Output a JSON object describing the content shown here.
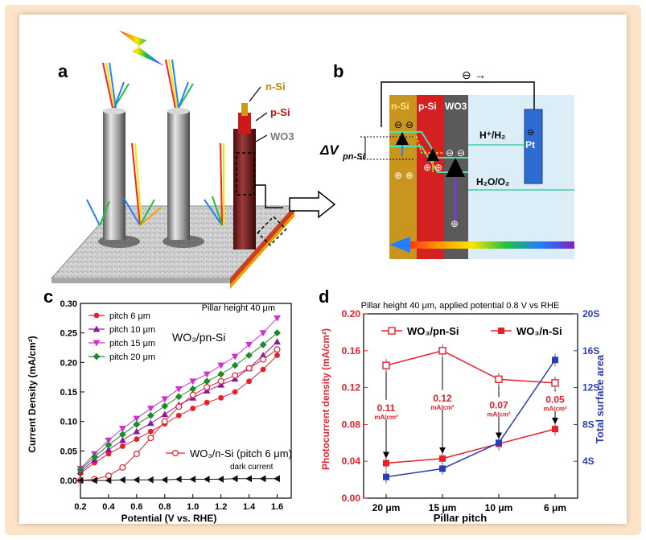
{
  "panels": {
    "a": "a",
    "b": "b",
    "c": "c",
    "d": "d"
  },
  "panel_a": {
    "labels": [
      "n-Si",
      "p-Si",
      "WO3"
    ],
    "label_colors": [
      "#c08a00",
      "#cc1111",
      "#7a7a7a"
    ]
  },
  "panel_b": {
    "layers": [
      "n-Si",
      "p-Si",
      "WO3"
    ],
    "layer_colors": [
      "#c8961e",
      "#d42020",
      "#5a5a5a"
    ],
    "electron": "⊖",
    "electron_arrow": "→",
    "delta_v": "ΔV",
    "delta_v_sub": "pn-Si",
    "redox1": "H⁺/H₂",
    "redox2": "H₂O/O₂",
    "metal": "Pt",
    "electron_charge": "⊖",
    "hole_charge": "⊕"
  },
  "chart_data": [
    {
      "type": "scatter",
      "panel": "c",
      "xlabel": "Potential (V vs. RHE)",
      "ylabel": "Current Density (mA/cm²)",
      "xlim": [
        0.2,
        1.7
      ],
      "ylim": [
        -0.03,
        0.3
      ],
      "xticks": [
        "0.2",
        "0.4",
        "0.6",
        "0.8",
        "1.0",
        "1.2",
        "1.4",
        "1.6"
      ],
      "yticks": [
        "0.00",
        "0.05",
        "0.10",
        "0.15",
        "0.20",
        "0.25",
        "0.30"
      ],
      "annotations": [
        "Pillar height 40 μm",
        "WO₃/pn-Si",
        "dark current"
      ],
      "legend_position": "top-left",
      "series": [
        {
          "name": "pitch 6 μm",
          "color": "#e8202a",
          "marker": "circle",
          "x": [
            0.2,
            0.3,
            0.4,
            0.5,
            0.6,
            0.7,
            0.8,
            0.9,
            1.0,
            1.1,
            1.2,
            1.3,
            1.4,
            1.5,
            1.6
          ],
          "y": [
            0.012,
            0.03,
            0.045,
            0.058,
            0.07,
            0.083,
            0.096,
            0.11,
            0.122,
            0.132,
            0.14,
            0.15,
            0.168,
            0.188,
            0.212
          ]
        },
        {
          "name": "pitch 10 μm",
          "color": "#8b1a9b",
          "marker": "triangle-up",
          "x": [
            0.2,
            0.3,
            0.4,
            0.5,
            0.6,
            0.7,
            0.8,
            0.9,
            1.0,
            1.1,
            1.2,
            1.3,
            1.4,
            1.5,
            1.6
          ],
          "y": [
            0.015,
            0.035,
            0.052,
            0.068,
            0.083,
            0.097,
            0.112,
            0.128,
            0.14,
            0.152,
            0.162,
            0.172,
            0.19,
            0.212,
            0.235
          ]
        },
        {
          "name": "pitch 15 μm",
          "color": "#cc33cc",
          "marker": "triangle-down",
          "x": [
            0.2,
            0.3,
            0.4,
            0.5,
            0.6,
            0.7,
            0.8,
            0.9,
            1.0,
            1.1,
            1.2,
            1.3,
            1.4,
            1.5,
            1.6
          ],
          "y": [
            0.02,
            0.045,
            0.068,
            0.088,
            0.105,
            0.122,
            0.138,
            0.155,
            0.168,
            0.18,
            0.195,
            0.21,
            0.23,
            0.25,
            0.275
          ]
        },
        {
          "name": "pitch 20 μm",
          "color": "#1f8a2a",
          "marker": "diamond",
          "x": [
            0.2,
            0.3,
            0.4,
            0.5,
            0.6,
            0.7,
            0.8,
            0.9,
            1.0,
            1.1,
            1.2,
            1.3,
            1.4,
            1.5,
            1.6
          ],
          "y": [
            0.018,
            0.04,
            0.06,
            0.078,
            0.095,
            0.11,
            0.126,
            0.142,
            0.155,
            0.168,
            0.18,
            0.195,
            0.212,
            0.23,
            0.25
          ]
        },
        {
          "name": "WO₃/n-Si (pitch 6 μm)",
          "color": "#e8202a",
          "marker": "open-circle",
          "x": [
            0.2,
            0.3,
            0.4,
            0.5,
            0.6,
            0.7,
            0.8,
            0.9,
            1.0,
            1.1,
            1.2,
            1.3,
            1.4,
            1.5,
            1.6
          ],
          "y": [
            0.0,
            0.002,
            0.008,
            0.022,
            0.045,
            0.072,
            0.1,
            0.125,
            0.145,
            0.158,
            0.168,
            0.178,
            0.19,
            0.205,
            0.222
          ]
        },
        {
          "name": "dark current",
          "color": "#111111",
          "marker": "triangle-left",
          "x": [
            0.2,
            0.3,
            0.4,
            0.5,
            0.6,
            0.7,
            0.8,
            0.9,
            1.0,
            1.1,
            1.2,
            1.3,
            1.4,
            1.5,
            1.6
          ],
          "y": [
            0.0,
            0.0,
            0.0,
            0.001,
            0.001,
            0.001,
            0.001,
            0.002,
            0.002,
            0.002,
            0.002,
            0.003,
            0.003,
            0.003,
            0.003
          ]
        }
      ]
    },
    {
      "type": "line",
      "panel": "d",
      "title": "Pillar height 40 μm, applied potential 0.8 V vs RHE",
      "xlabel": "Pillar pitch",
      "ylabel": "Photocurrent density (mA/cm²)",
      "y2label": "Total surface area",
      "categories": [
        "20 μm",
        "15 μm",
        "10 μm",
        "6 μm"
      ],
      "ylim": [
        0.0,
        0.2
      ],
      "yticks": [
        "0.00",
        "0.04",
        "0.08",
        "0.12",
        "0.16",
        "0.20"
      ],
      "y2lim": [
        0,
        20
      ],
      "y2ticks": [
        "4S",
        "8S",
        "12S",
        "16S",
        "20S"
      ],
      "legend_position": "top",
      "differences": [
        "0.11",
        "0.12",
        "0.07",
        "0.05"
      ],
      "difference_unit": "mA/cm²",
      "series": [
        {
          "name": "WO₃/pn-Si",
          "color": "#e8202a",
          "marker": "open-square",
          "axis": "left",
          "values": [
            0.144,
            0.16,
            0.129,
            0.125
          ]
        },
        {
          "name": "WO₃/n-Si",
          "color": "#e8202a",
          "marker": "square",
          "axis": "left",
          "values": [
            0.038,
            0.043,
            0.059,
            0.075
          ]
        },
        {
          "color": "#2a3eb1",
          "marker": "square",
          "axis": "right",
          "values": [
            2.3,
            3.2,
            6.0,
            15.0
          ]
        }
      ]
    }
  ]
}
